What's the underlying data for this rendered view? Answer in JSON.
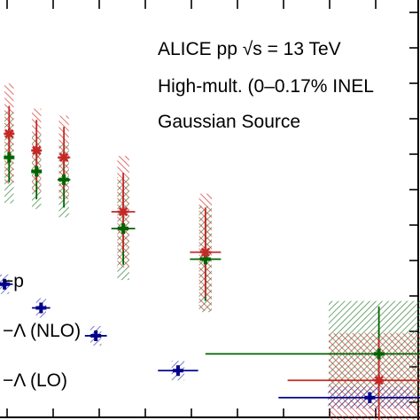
{
  "chart_data": {
    "type": "scatter",
    "annotations": {
      "line1": "ALICE pp √s = 13 TeV",
      "line2": "High-mult. (0–0.17% INEL",
      "line3": "Gaussian Source"
    },
    "series": [
      {
        "name": "−p",
        "marker": "plus",
        "color": "#00008b",
        "band_color": "#3a3ab0",
        "points": [
          {
            "x": 0.95,
            "y": 0.43,
            "xerr": 0.09,
            "yerr": 0.016,
            "band_w": 0.1,
            "band_h": 0.07
          },
          {
            "x": 1.35,
            "y": 0.345,
            "xerr": 0.1,
            "yerr": 0.016,
            "band_w": 0.11,
            "band_h": 0.07
          },
          {
            "x": 1.95,
            "y": 0.245,
            "xerr": 0.12,
            "yerr": 0.016,
            "band_w": 0.12,
            "band_h": 0.07
          },
          {
            "x": 2.85,
            "y": 0.12,
            "xerr": 0.22,
            "yerr": 0.016,
            "band_w": 0.14,
            "band_h": 0.07
          },
          {
            "x": 4.95,
            "y": 0.023,
            "xerr": 1.0,
            "yerr": 0.02,
            "band_w": 0.92,
            "band_h": 0.08
          }
        ]
      },
      {
        "name": "−Λ (NLO)",
        "marker": "plus",
        "color": "#006400",
        "band_color": "#2e7d32",
        "points": [
          {
            "x": 1.0,
            "y": 0.885,
            "xerr": 0.04,
            "yerr": 0.09,
            "band_w": 0.1,
            "band_h": 0.33
          },
          {
            "x": 1.3,
            "y": 0.835,
            "xerr": 0.05,
            "yerr": 0.1,
            "band_w": 0.1,
            "band_h": 0.27
          },
          {
            "x": 1.6,
            "y": 0.805,
            "xerr": 0.07,
            "yerr": 0.1,
            "band_w": 0.11,
            "band_h": 0.27
          },
          {
            "x": 2.25,
            "y": 0.63,
            "xerr": 0.13,
            "yerr": 0.13,
            "band_w": 0.13,
            "band_h": 0.37
          },
          {
            "x": 3.15,
            "y": 0.52,
            "xerr": 0.17,
            "yerr": 0.15,
            "band_w": 0.14,
            "band_h": 0.38
          },
          {
            "x": 5.05,
            "y": 0.18,
            "xerr": 1.9,
            "yerr": 0.17,
            "band_w": 1.1,
            "band_h": 0.38
          }
        ]
      },
      {
        "name": "−Λ (LO)",
        "marker": "asterisk",
        "color": "#c62828",
        "band_color": "#d32f2f",
        "points": [
          {
            "x": 1.0,
            "y": 0.97,
            "xerr": 0.04,
            "yerr": 0.1,
            "band_w": 0.1,
            "band_h": 0.36
          },
          {
            "x": 1.3,
            "y": 0.91,
            "xerr": 0.05,
            "yerr": 0.11,
            "band_w": 0.1,
            "band_h": 0.3
          },
          {
            "x": 1.6,
            "y": 0.885,
            "xerr": 0.07,
            "yerr": 0.11,
            "band_w": 0.11,
            "band_h": 0.3
          },
          {
            "x": 2.25,
            "y": 0.69,
            "xerr": 0.13,
            "yerr": 0.14,
            "band_w": 0.13,
            "band_h": 0.4
          },
          {
            "x": 3.15,
            "y": 0.545,
            "xerr": 0.17,
            "yerr": 0.16,
            "band_w": 0.14,
            "band_h": 0.42
          },
          {
            "x": 5.05,
            "y": 0.085,
            "xerr": 1.0,
            "yerr": 0.15,
            "band_w": 1.1,
            "band_h": 0.34
          }
        ]
      }
    ],
    "xlim": [
      0.9,
      5.5
    ],
    "ylim": [
      0.0,
      1.45
    ]
  }
}
